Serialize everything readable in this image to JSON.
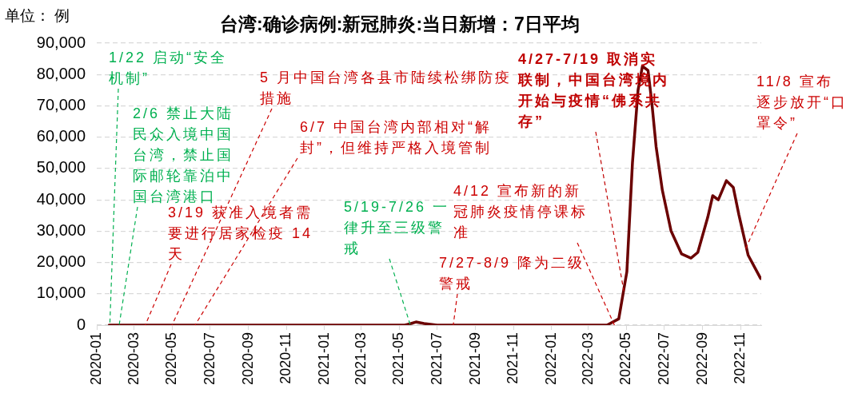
{
  "chart_data": {
    "type": "line",
    "title": "台湾:确诊病例:新冠肺炎:当日新增：7日平均",
    "ylabel": "单位： 例",
    "series": [
      {
        "color": "#6b0000",
        "x": [
          "2020-01-21",
          "2021-05-10",
          "2021-05-20",
          "2021-05-28",
          "2021-06-10",
          "2021-07-01",
          "2021-07-20",
          "2021-08-15",
          "2022-03-31",
          "2022-04-19",
          "2022-05-02",
          "2022-05-11",
          "2022-05-20",
          "2022-05-27",
          "2022-06-05",
          "2022-06-11",
          "2022-06-18",
          "2022-06-28",
          "2022-07-12",
          "2022-07-29",
          "2022-08-13",
          "2022-08-24",
          "2022-09-09",
          "2022-09-17",
          "2022-09-26",
          "2022-10-09",
          "2022-10-20",
          "2022-10-29",
          "2022-11-13",
          "2022-12-03"
        ],
        "values": [
          0,
          0,
          500,
          1000,
          500,
          0,
          0,
          0,
          0,
          2000,
          17000,
          51800,
          75000,
          82600,
          81300,
          71300,
          57000,
          43100,
          30100,
          22700,
          21400,
          23200,
          34400,
          41300,
          40000,
          46100,
          44000,
          35300,
          22300,
          14900
        ]
      }
    ],
    "xlim": [
      "2020-01-01",
      "2022-12-04"
    ],
    "xticks": [
      "2020-01",
      "2020-03",
      "2020-05",
      "2020-07",
      "2020-09",
      "2020-11",
      "2021-01",
      "2021-03",
      "2021-05",
      "2021-07",
      "2021-09",
      "2021-11",
      "2022-01",
      "2022-03",
      "2022-05",
      "2022-07",
      "2022-09",
      "2022-11"
    ],
    "ylim": [
      0,
      90000
    ],
    "yticks": [
      0,
      {
        "value": 10000,
        "label": "10,000"
      },
      {
        "value": 20000,
        "label": "20,000"
      },
      {
        "value": 30000,
        "label": "30,000"
      },
      {
        "value": 40000,
        "label": "40,000"
      },
      {
        "value": 50000,
        "label": "50,000"
      },
      {
        "value": 60000,
        "label": "60,000"
      },
      {
        "value": 70000,
        "label": "70,000"
      },
      {
        "value": 80000,
        "label": "80,000"
      },
      {
        "value": 90000,
        "label": "90,000"
      }
    ],
    "grid": "y",
    "annotations": [
      {
        "text": "1/22 启动“安全机制”",
        "x": "2020-01-22",
        "y": 0
      },
      {
        "text": "2/6 禁止大陆民众入境中国台湾，禁止国际邮轮靠泊中国台湾港口",
        "x": "2020-02-06",
        "y": 0
      },
      {
        "text": "3/19 获准入境者需要进行居家检疫 14天",
        "x": "2020-03-19",
        "y": 0
      },
      {
        "text": "5 月中国台湾各县市陆续松绑防疫措施",
        "x": "2020-05-01",
        "y": 0
      },
      {
        "text": "6/7 中国台湾内部相对“解封”，但维持严格入境管制",
        "x": "2020-06-07",
        "y": 0
      },
      {
        "text": "5/19-7/26 一律升至三级警戒",
        "x": "2021-05-19",
        "y": 0
      },
      {
        "text": "7/27-8/9 降为二级警戒",
        "x": "2021-07-27",
        "y": 0
      },
      {
        "text": "4/12 宣布新的新冠肺炎疫情停课标准",
        "x": "2022-04-12",
        "y": 0
      },
      {
        "text": "4/27-7/19 取消实联制，中国台湾境内开始与疫情“佛系共存”",
        "x": "2022-04-27",
        "y": 11000
      },
      {
        "text": "11/8 宣布逐步放开“口罩令”",
        "x": "2022-11-08",
        "y": 24000
      }
    ]
  }
}
